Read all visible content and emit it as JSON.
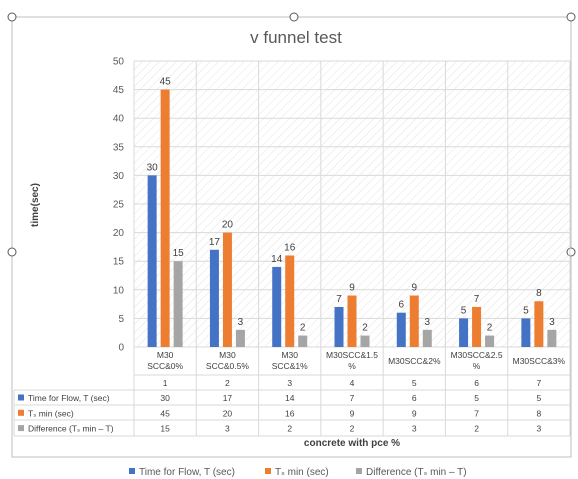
{
  "chart_data": {
    "type": "bar",
    "title": "v funnel test",
    "xlabel": "concrete with pce %",
    "ylabel": "time(sec)",
    "ylim": [
      0,
      50
    ],
    "yticks": [
      0,
      5,
      10,
      15,
      20,
      25,
      30,
      35,
      40,
      45,
      50
    ],
    "categories": [
      "M30 SCC&0%",
      "M30 SCC&0.5%",
      "M30 SCC&1%",
      "M30SCC&1.5 %",
      "M30SCC&2%",
      "M30SCC&2.5 %",
      "M30SCC&3%"
    ],
    "category_numbers": [
      "1",
      "2",
      "3",
      "4",
      "5",
      "6",
      "7"
    ],
    "series": [
      {
        "name": "Time for Flow, T (sec)",
        "color": "#4472C4",
        "values": [
          30,
          17,
          14,
          7,
          6,
          5,
          5
        ]
      },
      {
        "name": "Tₛ min (sec)",
        "color": "#ED7D31",
        "values": [
          45,
          20,
          16,
          9,
          9,
          7,
          8
        ]
      },
      {
        "name": "Difference (Tₛ min – T)",
        "color": "#A5A5A5",
        "values": [
          15,
          3,
          2,
          2,
          3,
          2,
          3
        ]
      }
    ],
    "grid": true,
    "legend": "bottom",
    "data_table": true
  }
}
